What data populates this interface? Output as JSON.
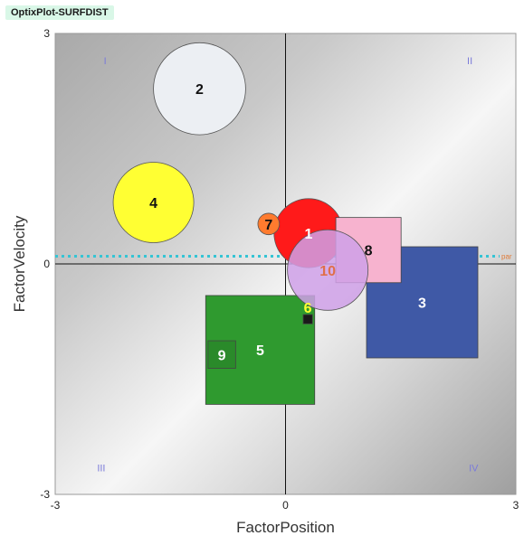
{
  "header": {
    "title": "OptixPlot-SURFDIST"
  },
  "chart_data": {
    "type": "scatter",
    "title": "",
    "xlabel": "FactorPosition",
    "ylabel": "FactorVelocity",
    "xlim": [
      -3,
      3
    ],
    "ylim": [
      -3,
      3
    ],
    "xticks": [
      "-3",
      "0",
      "3"
    ],
    "yticks": [
      "3",
      "0",
      "-3"
    ],
    "grid": false,
    "quadrant_labels": [
      "I",
      "II",
      "III",
      "IV"
    ],
    "reference_line": {
      "y": 0.1,
      "label": "par",
      "color": "#35c4d4"
    },
    "points": [
      {
        "label": "1",
        "x": 0.3,
        "y": 0.4,
        "shape": "circle",
        "size": 0.9,
        "color": "#ff1a1a",
        "label_color": "#ffffff"
      },
      {
        "label": "2",
        "x": -1.12,
        "y": 2.28,
        "shape": "circle",
        "size": 1.2,
        "color": "#eceff3",
        "label_color": "#111111"
      },
      {
        "label": "3",
        "x": 1.78,
        "y": -0.5,
        "shape": "square",
        "size": 1.45,
        "color": "#3f59a6",
        "label_color": "#ffffff"
      },
      {
        "label": "4",
        "x": -1.72,
        "y": 0.8,
        "shape": "circle",
        "size": 1.05,
        "color": "#ffff33",
        "label_color": "#111111"
      },
      {
        "label": "5",
        "x": -0.33,
        "y": -1.12,
        "shape": "square",
        "size": 1.42,
        "color": "#2f9a2f",
        "label_color": "#ffffff"
      },
      {
        "label": "6",
        "x": 0.29,
        "y": -0.72,
        "shape": "square",
        "size": 0.12,
        "color": "#1a1a1a",
        "label_color": "#ffff33"
      },
      {
        "label": "7",
        "x": -0.22,
        "y": 0.52,
        "shape": "circle",
        "size": 0.28,
        "color": "#ff7b2e",
        "label_color": "#111111"
      },
      {
        "label": "8",
        "x": 1.08,
        "y": 0.18,
        "shape": "square",
        "size": 0.85,
        "color": "#f7b3cf",
        "label_color": "#111111"
      },
      {
        "label": "9",
        "x": -0.83,
        "y": -1.18,
        "shape": "square",
        "size": 0.36,
        "color": "#2a8a2a",
        "label_color": "#ffffff"
      },
      {
        "label": "10",
        "x": 0.55,
        "y": -0.08,
        "shape": "circle",
        "size": 1.05,
        "color": "#cfa0e8",
        "label_color": "#e06f4a",
        "opacity": 0.85
      }
    ]
  }
}
